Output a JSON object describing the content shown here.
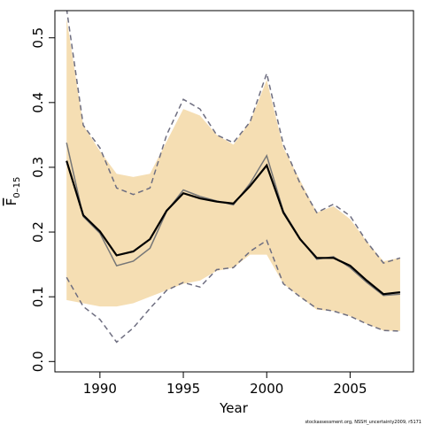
{
  "chart_data": {
    "type": "line",
    "x_label": "Year",
    "y_label": "F",
    "y_label_sub": "0–15",
    "footnote": "stockassessment.org, NSSH_uncertainty2009, r5171",
    "x": [
      1988,
      1989,
      1990,
      1991,
      1992,
      1993,
      1994,
      1995,
      1996,
      1997,
      1998,
      1999,
      2000,
      2001,
      2002,
      2003,
      2004,
      2005,
      2006,
      2007,
      2008
    ],
    "xlim": [
      1987.3,
      2008.8
    ],
    "xticks": [
      1990,
      1995,
      2000,
      2005
    ],
    "ylim": [
      -0.016,
      0.542
    ],
    "yticks": [
      {
        "value": 0,
        "label": "0.0"
      },
      0.1,
      0.2,
      0.3,
      0.4,
      0.5
    ],
    "band": {
      "color": "#f5deb3",
      "upper": [
        0.53,
        0.365,
        0.325,
        0.29,
        0.285,
        0.29,
        0.34,
        0.39,
        0.38,
        0.35,
        0.335,
        0.37,
        0.435,
        0.33,
        0.28,
        0.23,
        0.24,
        0.22,
        0.185,
        0.155,
        0.16
      ],
      "lower": [
        0.095,
        0.09,
        0.085,
        0.085,
        0.09,
        0.1,
        0.11,
        0.12,
        0.125,
        0.14,
        0.145,
        0.165,
        0.165,
        0.12,
        0.1,
        0.08,
        0.078,
        0.07,
        0.058,
        0.048,
        0.047
      ]
    },
    "series": [
      {
        "color": "#6e6e80",
        "dashed": true,
        "width": 1.5,
        "values": [
          0.545,
          0.365,
          0.33,
          0.268,
          0.258,
          0.268,
          0.35,
          0.405,
          0.39,
          0.35,
          0.338,
          0.37,
          0.445,
          0.335,
          0.275,
          0.23,
          0.243,
          0.225,
          0.185,
          0.152,
          0.16
        ]
      },
      {
        "color": "#6e6e80",
        "dashed": true,
        "width": 1.5,
        "values": [
          0.13,
          0.085,
          0.065,
          0.03,
          0.052,
          0.082,
          0.11,
          0.122,
          0.115,
          0.142,
          0.145,
          0.17,
          0.187,
          0.12,
          0.1,
          0.082,
          0.078,
          0.07,
          0.058,
          0.048,
          0.047
        ]
      },
      {
        "color": "#777777",
        "dashed": false,
        "width": 1.5,
        "values": [
          0.338,
          0.224,
          0.198,
          0.148,
          0.155,
          0.175,
          0.232,
          0.265,
          0.255,
          0.248,
          0.242,
          0.275,
          0.318,
          0.232,
          0.19,
          0.158,
          0.162,
          0.145,
          0.122,
          0.102,
          0.104
        ]
      },
      {
        "color": "#000000",
        "dashed": false,
        "width": 2.2,
        "values": [
          0.31,
          0.226,
          0.201,
          0.164,
          0.17,
          0.189,
          0.233,
          0.26,
          0.252,
          0.247,
          0.244,
          0.271,
          0.303,
          0.23,
          0.189,
          0.16,
          0.16,
          0.148,
          0.125,
          0.104,
          0.107
        ]
      }
    ]
  }
}
